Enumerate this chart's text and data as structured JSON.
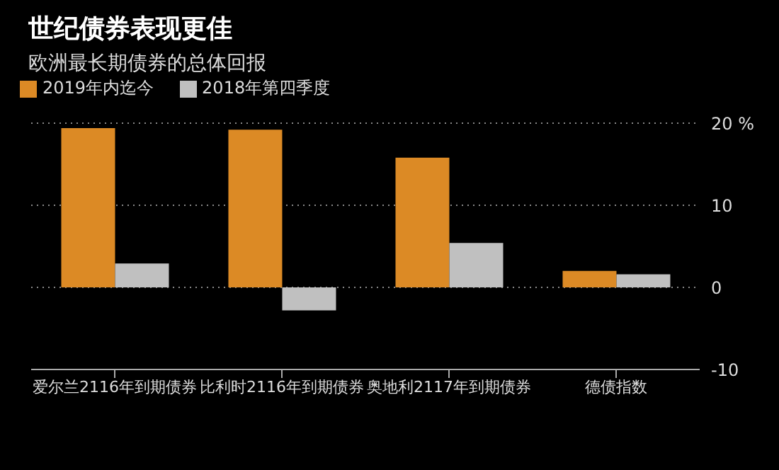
{
  "chart_data": {
    "type": "bar",
    "title": "世纪债券表现更佳",
    "subtitle": "欧洲最长期债券的总体回报",
    "categories": [
      "爱尔兰2116年到期债券",
      "比利时2116年到期债券",
      "奥地利2117年到期债券",
      "德债指数"
    ],
    "series": [
      {
        "name": "2019年内迄今",
        "color": "#dc8a25",
        "values": [
          19.4,
          19.2,
          15.8,
          2.0
        ]
      },
      {
        "name": "2018年第四季度",
        "color": "#c0c0c0",
        "values": [
          2.9,
          -2.8,
          5.4,
          1.6
        ]
      }
    ],
    "ylim": [
      -10,
      20
    ],
    "yticks": [
      {
        "value": 20,
        "label": "20 %"
      },
      10,
      0,
      -10
    ],
    "grid": "y",
    "legend": "top left"
  }
}
